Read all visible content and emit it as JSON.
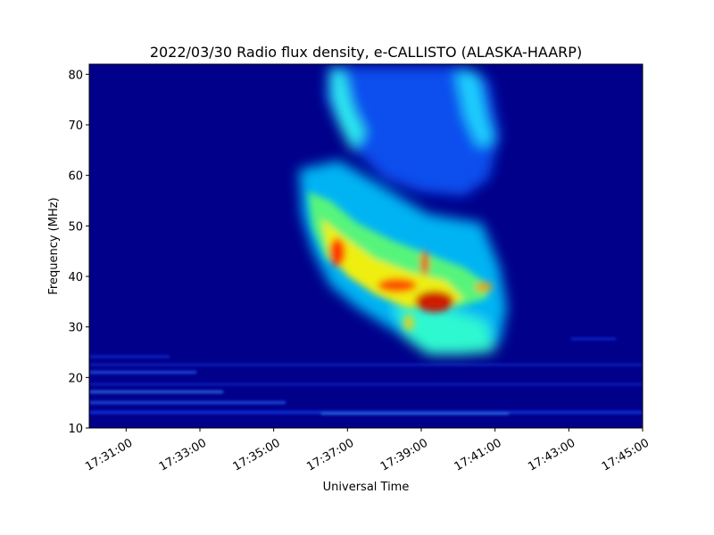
{
  "chart_data": {
    "type": "heatmap",
    "title": "2022/03/30  Radio flux density, e-CALLISTO (ALASKA-HAARP)",
    "xlabel": "Universal Time",
    "ylabel": "Frequency (MHz)",
    "xlim": [
      "17:30:00",
      "17:45:00"
    ],
    "ylim": [
      10,
      82
    ],
    "x_ticks": [
      "17:31:00",
      "17:33:00",
      "17:35:00",
      "17:37:00",
      "17:39:00",
      "17:41:00",
      "17:43:00",
      "17:45:00"
    ],
    "y_ticks": [
      10,
      20,
      30,
      40,
      50,
      60,
      70,
      80
    ],
    "colormap": "jet",
    "background_color": "#00008b",
    "features": [
      {
        "kind": "type-II-burst",
        "t_start": "17:35:50",
        "t_end": "17:41:30",
        "f_min": 24,
        "f_max": 82
      },
      {
        "kind": "intensity-peak",
        "t": "17:39:05",
        "f": 35
      },
      {
        "kind": "intensity-peak",
        "t": "17:36:50",
        "f": 44
      },
      {
        "kind": "rfi-lines",
        "f": [
          13,
          15,
          17,
          18.5,
          21,
          22.5
        ]
      }
    ]
  }
}
